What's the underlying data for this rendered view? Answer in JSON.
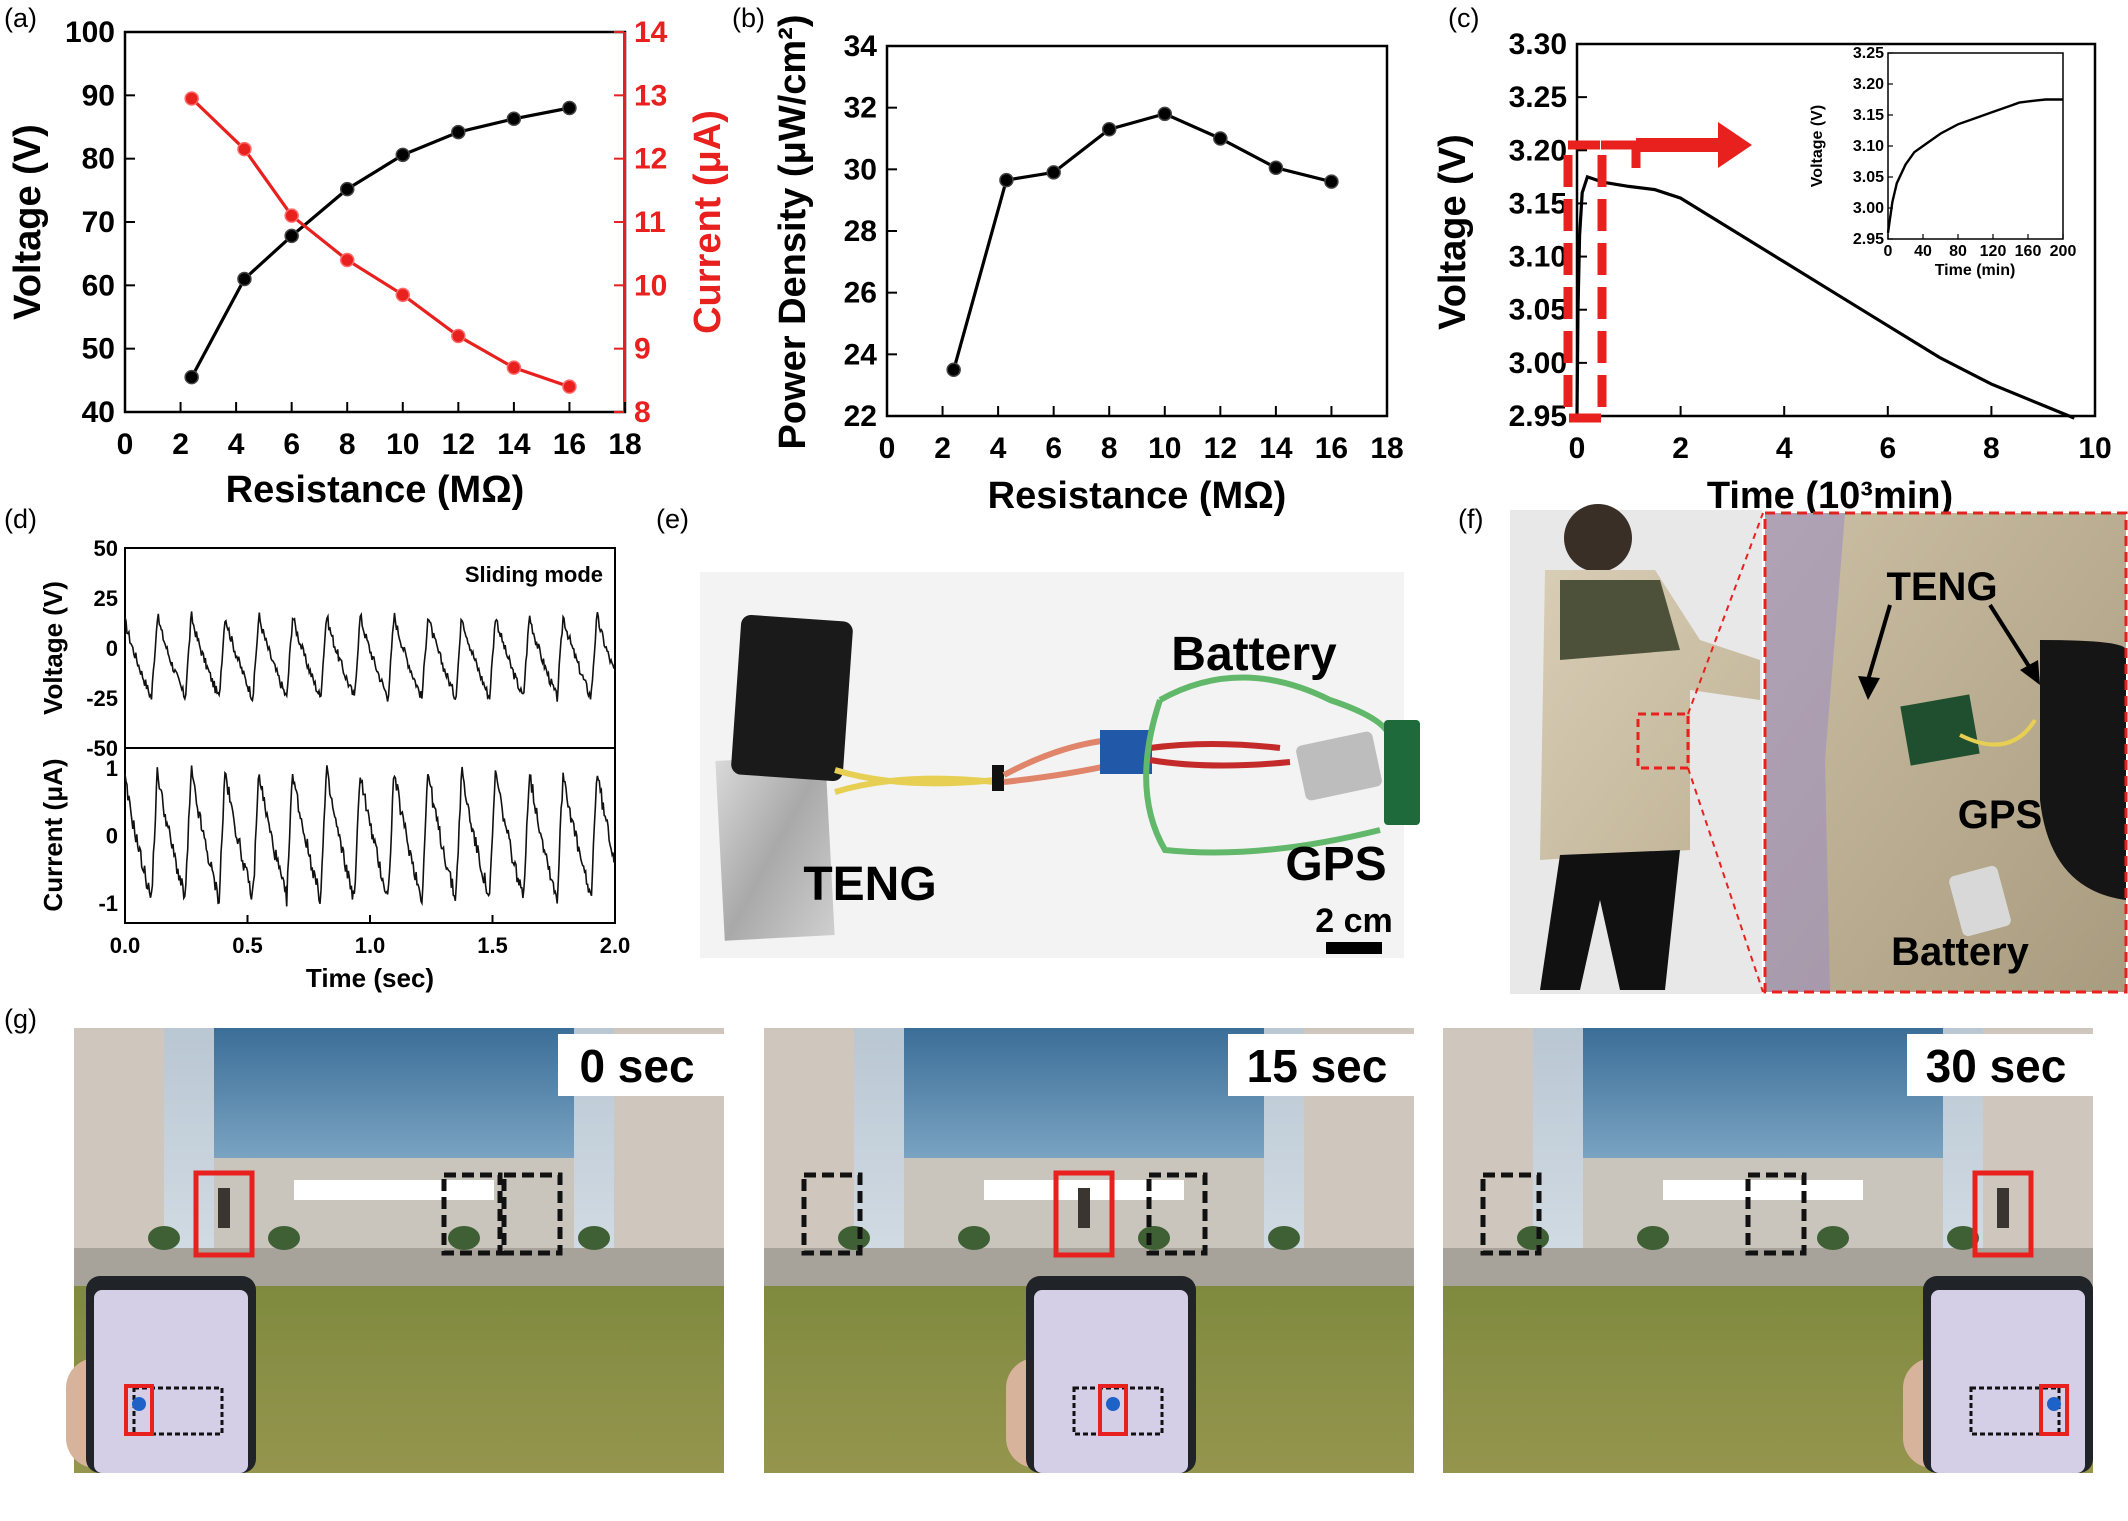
{
  "panels": {
    "a": "(a)",
    "b": "(b)",
    "c": "(c)",
    "d": "(d)",
    "e": "(e)",
    "f": "(f)",
    "g": "(g)"
  },
  "chart_data": [
    {
      "id": "a",
      "type": "line",
      "x": [
        2.4,
        4.3,
        6,
        8,
        10,
        12,
        14,
        16
      ],
      "series": [
        {
          "axis": "left",
          "color": "#000000",
          "values": [
            45.5,
            61,
            67.8,
            75.2,
            80.6,
            84.2,
            86.3,
            88
          ]
        },
        {
          "axis": "right",
          "color": "#e8201e",
          "values": [
            12.95,
            12.15,
            11.1,
            10.4,
            9.85,
            9.2,
            8.7,
            8.4
          ]
        }
      ],
      "xlabel": "Resistance (MΩ)",
      "ylabel": "Voltage (V)",
      "y2label": "Current (μA)",
      "xlim": [
        0,
        18
      ],
      "ylim": [
        40,
        100
      ],
      "y2lim": [
        8,
        14
      ],
      "xticks": [
        "0",
        "2",
        "4",
        "6",
        "8",
        "10",
        "12",
        "14",
        "16",
        "18"
      ],
      "yticks": [
        "40",
        "50",
        "60",
        "70",
        "80",
        "90",
        "100"
      ],
      "y2ticks": [
        "8",
        "9",
        "10",
        "11",
        "12",
        "13",
        "14"
      ]
    },
    {
      "id": "b",
      "type": "line",
      "x": [
        2.4,
        4.3,
        6,
        8,
        10,
        12,
        14,
        16
      ],
      "series": [
        {
          "color": "#000000",
          "values": [
            23.5,
            29.65,
            29.9,
            31.3,
            31.8,
            31,
            30.05,
            29.6
          ]
        }
      ],
      "xlabel": "Resistance (MΩ)",
      "ylabel": "Power Density (μW/cm²)",
      "xlim": [
        0,
        18
      ],
      "ylim": [
        22,
        34
      ],
      "xticks": [
        "0",
        "2",
        "4",
        "6",
        "8",
        "10",
        "12",
        "14",
        "16",
        "18"
      ],
      "yticks": [
        "22",
        "24",
        "26",
        "28",
        "30",
        "32",
        "34"
      ]
    },
    {
      "id": "c",
      "type": "line",
      "x": [
        0,
        0.02,
        0.05,
        0.1,
        0.2,
        0.5,
        1.0,
        1.5,
        2.0,
        3,
        4,
        5,
        6,
        7,
        8,
        9,
        9.6
      ],
      "series": [
        {
          "color": "#000000",
          "values": [
            2.95,
            3.05,
            3.12,
            3.16,
            3.175,
            3.17,
            3.166,
            3.163,
            3.155,
            3.125,
            3.095,
            3.065,
            3.035,
            3.005,
            2.98,
            2.96,
            2.948
          ]
        }
      ],
      "xlabel": "Time (10³min)",
      "ylabel": "Voltage (V)",
      "xlim": [
        0,
        10
      ],
      "ylim": [
        2.95,
        3.3
      ],
      "xticks": [
        "0",
        "2",
        "4",
        "6",
        "8",
        "10"
      ],
      "yticks": [
        "2.95",
        "3.00",
        "3.05",
        "3.10",
        "3.15",
        "3.20",
        "3.25",
        "3.30"
      ],
      "inset": {
        "x": [
          0,
          5,
          10,
          20,
          30,
          40,
          60,
          80,
          100,
          120,
          140,
          150,
          160,
          180,
          200
        ],
        "values": [
          2.96,
          3.01,
          3.04,
          3.07,
          3.09,
          3.1,
          3.12,
          3.135,
          3.145,
          3.155,
          3.165,
          3.17,
          3.172,
          3.175,
          3.175
        ],
        "xlabel": "Time (min)",
        "ylabel": "Voltage (V)",
        "xlim": [
          0,
          200
        ],
        "ylim": [
          2.95,
          3.25
        ],
        "xticks": [
          "0",
          "40",
          "80",
          "120",
          "160",
          "200"
        ],
        "yticks": [
          "2.95",
          "3.00",
          "3.05",
          "3.10",
          "3.15",
          "3.20",
          "3.25"
        ]
      }
    },
    {
      "id": "d",
      "type": "line",
      "annotation": "Sliding mode",
      "xlabel": "Time (sec)",
      "xlim": [
        0,
        2
      ],
      "period": 0.138,
      "top": {
        "ylabel": "Voltage (V)",
        "ylim": [
          -50,
          50
        ],
        "peak": 17,
        "trough": -25,
        "yticks": [
          "50",
          "25",
          "0",
          "-25",
          "-50"
        ]
      },
      "bottom": {
        "ylabel": "Current (μA)",
        "ylim": [
          -1.3,
          1.3
        ],
        "peak": 1.0,
        "trough": -0.95,
        "yticks": [
          "1",
          "0",
          "-1"
        ]
      },
      "xticks": [
        "0.0",
        "0.5",
        "1.0",
        "1.5",
        "2.0"
      ]
    }
  ],
  "photo_e": {
    "teng": "TENG",
    "battery": "Battery",
    "gps": "GPS",
    "scale": "2 cm"
  },
  "photo_f": {
    "teng": "TENG",
    "gps": "GPS",
    "battery": "Battery"
  },
  "photo_g": [
    {
      "time": "0 sec"
    },
    {
      "time": "15 sec"
    },
    {
      "time": "30 sec"
    }
  ]
}
